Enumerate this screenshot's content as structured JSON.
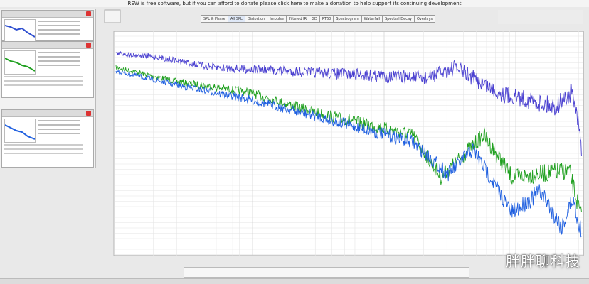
{
  "banner": "REW is free software, but if you can afford to donate please click here to make a donation to help support its continuing development",
  "tabs": [
    "SPL & Phase",
    "All SPL",
    "Distortion",
    "Impulse",
    "Filtered IR",
    "GD",
    "RT60",
    "Spectrogram",
    "Waterfall",
    "Spectral Decay",
    "Overlays"
  ],
  "watermark": "胖胖聊科技"
}
